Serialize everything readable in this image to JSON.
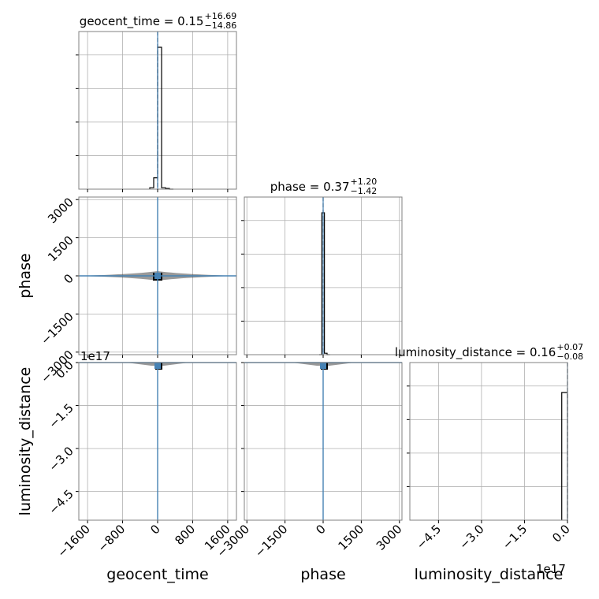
{
  "chart_data": {
    "type": "corner",
    "parameters": [
      "geocent_time",
      "phase",
      "luminosity_distance"
    ],
    "colors": {
      "hist": "#000000",
      "truth": "#4682b4",
      "grid": "#b0b0b0",
      "frame": "#808080"
    },
    "grid": true,
    "ranges": {
      "geocent_time": [
        -1800,
        1800
      ],
      "phase": [
        -3100,
        3100
      ],
      "luminosity_distance": [
        -5.5,
        0
      ]
    },
    "ticks": {
      "geocent_time": [
        "-1600",
        "-800",
        "0",
        "800",
        "1600"
      ],
      "phase": [
        "-3000",
        "-1500",
        "0",
        "1500",
        "3000"
      ],
      "luminosity_distance": [
        "-4.5",
        "-3.0",
        "-1.5",
        "0.0"
      ]
    },
    "tick_labels": {
      "geocent_time_x": [
        "−1600",
        "−800",
        "0",
        "800",
        "1600"
      ],
      "phase_x": [
        "−3000",
        "−1500",
        "0",
        "1500",
        "3000"
      ],
      "luminosity_distance_x": [
        "−4.5",
        "−3.0",
        "−1.5",
        "0.0"
      ],
      "phase_y": [
        "3000",
        "1500",
        "0",
        "−1500",
        "−3000"
      ],
      "luminosity_distance_y": [
        "0.0",
        "−1.5",
        "−3.0",
        "−4.5"
      ]
    },
    "offset_label": "1e17",
    "titles": [
      {
        "name": "geocent_time",
        "main": "geocent_time = 0.15",
        "plus": "+16.69",
        "minus": "−14.86"
      },
      {
        "name": "phase",
        "main": "phase = 0.37",
        "plus": "+1.20",
        "minus": "−1.42"
      },
      {
        "name": "luminosity_distance",
        "main": "luminosity_distance = 0.16",
        "plus": "+0.07",
        "minus": "−0.08"
      }
    ],
    "histograms": {
      "geocent_time": {
        "edges": [
          -180,
          -90,
          0,
          90,
          180,
          270,
          360
        ],
        "counts": [
          0.01,
          0.08,
          1.0,
          0.01,
          0.005,
          0.0
        ],
        "median": 0
      },
      "phase": {
        "edges": [
          -155,
          -50,
          0,
          50,
          155,
          260
        ],
        "counts": [
          0,
          1.0,
          1.0,
          0.01,
          0.0
        ],
        "median": 0
      },
      "luminosity_distance": {
        "edges": [
          -0.2,
          -0.05,
          0
        ],
        "counts": [
          0.9,
          0.9
        ],
        "median": 0
      }
    },
    "truths": {
      "geocent_time": 0,
      "phase": 0,
      "luminosity_distance": 0
    },
    "xlabels": [
      "geocent_time",
      "phase",
      "luminosity_distance"
    ],
    "ylabels": [
      "",
      "phase",
      "luminosity_distance"
    ]
  }
}
